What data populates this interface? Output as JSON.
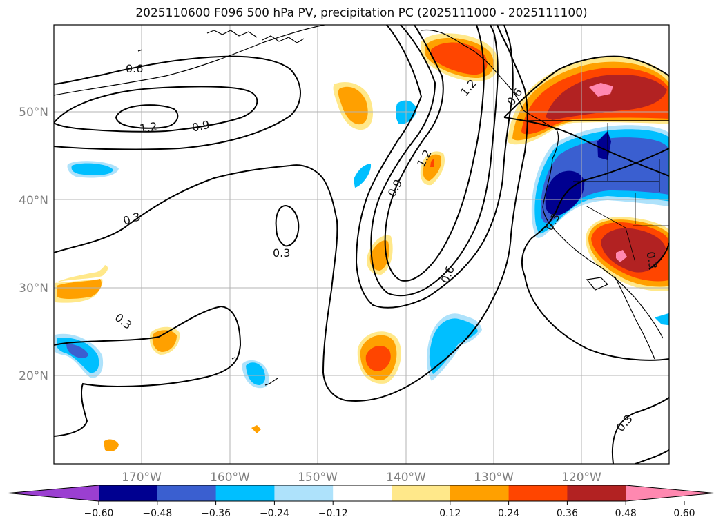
{
  "title": "2025110600 F096 500 hPa PV, precipitation PC (2025111000 - 2025111100)",
  "map": {
    "lat_labels": [
      "50°N",
      "40°N",
      "30°N",
      "20°N"
    ],
    "lon_labels": [
      "170°W",
      "160°W",
      "150°W",
      "140°W",
      "130°W",
      "120°W"
    ],
    "contour_labels": [
      "0.6",
      "1.2",
      "0.9",
      "0.3",
      "0.3",
      "0.3",
      "0.9",
      "1.2",
      "0.6",
      "0.3",
      "0.3",
      "0.3",
      "1.2",
      "0.6"
    ]
  },
  "colorbar": {
    "ticks": [
      "−0.60",
      "−0.48",
      "−0.36",
      "−0.24",
      "−0.12",
      "0.12",
      "0.24",
      "0.36",
      "0.48",
      "0.60"
    ],
    "colors": [
      "#9b3fd1",
      "#000090",
      "#3a5fd0",
      "#00bfff",
      "#aee2fb",
      "#ffffff",
      "#ffe88a",
      "#ffa000",
      "#ff4500",
      "#b22222",
      "#ff88b0"
    ]
  },
  "colors": {
    "pos1": "#ffe88a",
    "pos2": "#ffa000",
    "pos3": "#ff4500",
    "pos4": "#b22222",
    "pos5": "#ff88b0",
    "neg1": "#aee2fb",
    "neg2": "#00bfff",
    "neg3": "#3a5fd0",
    "neg4": "#000090"
  }
}
